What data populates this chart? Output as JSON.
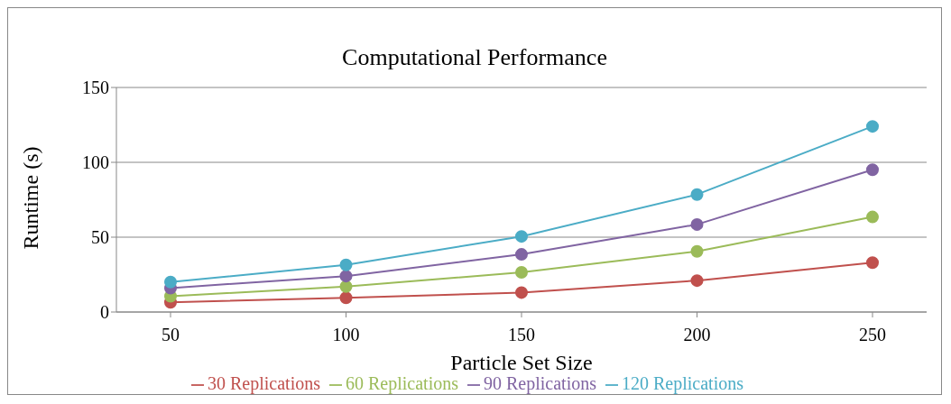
{
  "chart_data": {
    "type": "line",
    "title": "Computational Performance",
    "xlabel": "Particle Set Size",
    "ylabel": "Runtime (s)",
    "categories": [
      "50",
      "100",
      "150",
      "200",
      "250"
    ],
    "series": [
      {
        "name": "30 Replications",
        "color": "#c0504d",
        "values": [
          6.5,
          9.5,
          13,
          21,
          33
        ]
      },
      {
        "name": "60 Replications",
        "color": "#9bbb59",
        "values": [
          10.5,
          17,
          26.5,
          40.5,
          63.5
        ]
      },
      {
        "name": "90 Replications",
        "color": "#8064a2",
        "values": [
          16,
          24,
          38.5,
          58.5,
          95
        ]
      },
      {
        "name": "120 Replications",
        "color": "#4bacc6",
        "values": [
          20,
          31.5,
          50.5,
          78.5,
          124
        ]
      }
    ],
    "ylim": [
      0,
      150
    ],
    "yticks": [
      0,
      50,
      100,
      150
    ],
    "grid": "y",
    "legend": "bottom",
    "marker": "circle",
    "line_style": "solid"
  }
}
